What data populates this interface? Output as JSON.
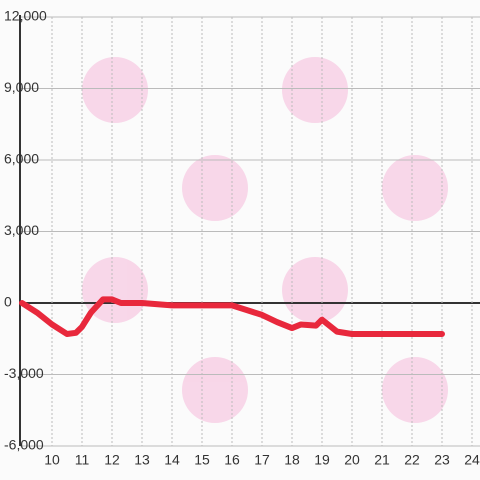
{
  "chart_data": {
    "type": "line",
    "x": [
      9,
      9.5,
      10,
      10.5,
      10.8,
      11,
      11.3,
      11.7,
      12,
      12.3,
      13,
      14,
      15,
      16,
      16.5,
      17,
      17.5,
      18,
      18.3,
      18.8,
      19,
      19.5,
      20,
      21,
      22,
      23
    ],
    "series": [
      {
        "color": "#e8283c",
        "values": [
          0,
          -400,
          -900,
          -1300,
          -1250,
          -1000,
          -400,
          150,
          150,
          0,
          0,
          -100,
          -100,
          -100,
          -300,
          -500,
          -800,
          -1050,
          -900,
          -950,
          -700,
          -1200,
          -1300,
          -1300,
          -1300,
          -1300
        ]
      }
    ],
    "xlim": [
      9,
      24.3
    ],
    "xticks": [
      10,
      11,
      12,
      13,
      14,
      15,
      16,
      17,
      18,
      19,
      20,
      21,
      22,
      23,
      24
    ],
    "ylim": [
      -6000,
      12000
    ],
    "yticks": [
      {
        "value": 12000,
        "label": "12,000"
      },
      {
        "value": 9000,
        "label": "9,000"
      },
      {
        "value": 6000,
        "label": "6,000"
      },
      {
        "value": 3000,
        "label": "3,000"
      },
      0,
      {
        "value": -3000,
        "label": "-3,000"
      },
      {
        "value": -6000,
        "label": "-6,000"
      }
    ],
    "grid": true
  }
}
